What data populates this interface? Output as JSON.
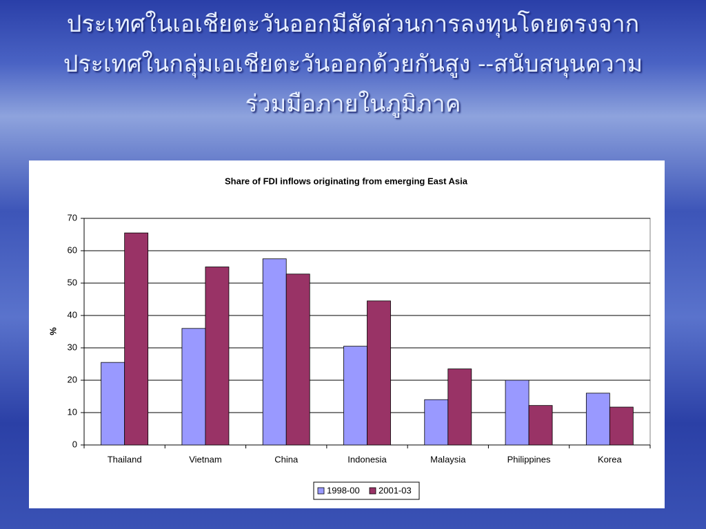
{
  "slide_title": [
    "ประเทศในเอเชียตะวันออกมีสัดส่วนการลงทุนโดยตรงจาก",
    "ประเทศในกลุ่มเอเชียตะวันออกด้วยกันสูง --สนับสนุนความ",
    "ร่วมมือภายในภูมิภาค"
  ],
  "chart_data": {
    "type": "bar",
    "title": "Share of FDI inflows originating from emerging East Asia",
    "y_label": "%",
    "categories": [
      "Thailand",
      "Vietnam",
      "China",
      "Indonesia",
      "Malaysia",
      "Philippines",
      "Korea"
    ],
    "series": [
      {
        "name": "1998-00",
        "color": "#9999ff",
        "values": [
          25.5,
          36,
          57.5,
          30.5,
          14,
          20,
          16
        ]
      },
      {
        "name": "2001-03",
        "color": "#993366",
        "values": [
          65.5,
          55,
          52.8,
          44.5,
          23.5,
          12.2,
          11.7
        ]
      }
    ],
    "ylim": [
      0,
      70
    ],
    "yticks": [
      0,
      10,
      20,
      30,
      40,
      50,
      60,
      70
    ],
    "grid": true,
    "legend": "bottom"
  }
}
